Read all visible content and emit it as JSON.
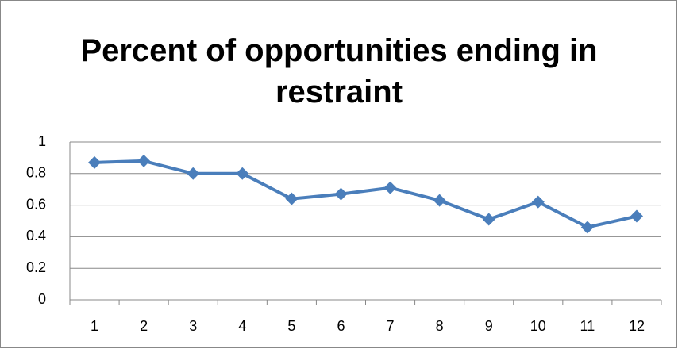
{
  "chart_data": {
    "type": "line",
    "title": "Percent of opportunities ending in restraint",
    "categories": [
      "1",
      "2",
      "3",
      "4",
      "5",
      "6",
      "7",
      "8",
      "9",
      "10",
      "11",
      "12"
    ],
    "series": [
      {
        "name": "Percent of opportunities ending in restraint",
        "color": "#4a7ebb",
        "values": [
          0.87,
          0.88,
          0.8,
          0.8,
          0.64,
          0.67,
          0.71,
          0.63,
          0.51,
          0.62,
          0.46,
          0.53
        ]
      }
    ],
    "ylim": [
      0,
      1
    ],
    "yticks": [
      0,
      0.2,
      0.4,
      0.6,
      0.8,
      1
    ],
    "grid": true,
    "legend": false
  }
}
